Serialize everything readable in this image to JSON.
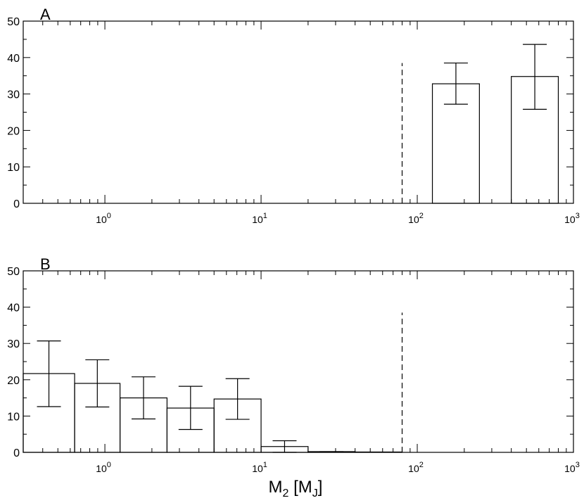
{
  "chart_data": [
    {
      "type": "bar",
      "panel_label": "A",
      "x_scale": "log",
      "xlim": [
        0.3,
        1000
      ],
      "ylim": [
        0,
        50
      ],
      "y_ticks": [
        "0",
        "10",
        "20",
        "30",
        "40",
        "50"
      ],
      "x_ticks": [
        {
          "base": "10",
          "exp": "0",
          "value": 1
        },
        {
          "base": "10",
          "exp": "1",
          "value": 10
        },
        {
          "base": "10",
          "exp": "2",
          "value": 100
        },
        {
          "base": "10",
          "exp": "3",
          "value": 1000
        }
      ],
      "dashed_line_x": 80,
      "dashed_line_ymax": 38.5,
      "bars": [
        {
          "x0": 125,
          "x1": 250,
          "value": 32.8,
          "err_low": 27.2,
          "err_high": 38.5
        },
        {
          "x0": 400,
          "x1": 800,
          "value": 34.8,
          "err_low": 25.8,
          "err_high": 43.6
        }
      ]
    },
    {
      "type": "bar",
      "panel_label": "B",
      "x_scale": "log",
      "xlim": [
        0.3,
        1000
      ],
      "ylim": [
        0,
        50
      ],
      "y_ticks": [
        "0",
        "10",
        "20",
        "30",
        "40",
        "50"
      ],
      "x_ticks": [
        {
          "base": "10",
          "exp": "0",
          "value": 1
        },
        {
          "base": "10",
          "exp": "1",
          "value": 10
        },
        {
          "base": "10",
          "exp": "2",
          "value": 100
        },
        {
          "base": "10",
          "exp": "3",
          "value": 1000
        }
      ],
      "dashed_line_x": 80,
      "dashed_line_ymax": 38.5,
      "bars": [
        {
          "x0": 0.3,
          "x1": 0.64,
          "value": 21.7,
          "err_low": 12.6,
          "err_high": 30.7
        },
        {
          "x0": 0.64,
          "x1": 1.25,
          "value": 19.0,
          "err_low": 12.5,
          "err_high": 25.5
        },
        {
          "x0": 1.25,
          "x1": 2.5,
          "value": 15.0,
          "err_low": 9.2,
          "err_high": 20.8
        },
        {
          "x0": 2.5,
          "x1": 5.0,
          "value": 12.2,
          "err_low": 6.3,
          "err_high": 18.2
        },
        {
          "x0": 5.0,
          "x1": 10.0,
          "value": 14.7,
          "err_low": 9.1,
          "err_high": 20.3
        },
        {
          "x0": 10.0,
          "x1": 20.0,
          "value": 1.6,
          "err_low": 0.0,
          "err_high": 3.2
        },
        {
          "x0": 20.0,
          "x1": 40.0,
          "value": 0.2,
          "err_low": 0.2,
          "err_high": 0.2
        },
        {
          "x0": 40.0,
          "x1": 80.0,
          "value": 0.1,
          "err_low": 0.1,
          "err_high": 0.1
        }
      ],
      "xlabel": {
        "main": "M",
        "sub": "2",
        "bracket_open": " [M",
        "bracket_sub": "J",
        "bracket_close": "]"
      }
    }
  ]
}
